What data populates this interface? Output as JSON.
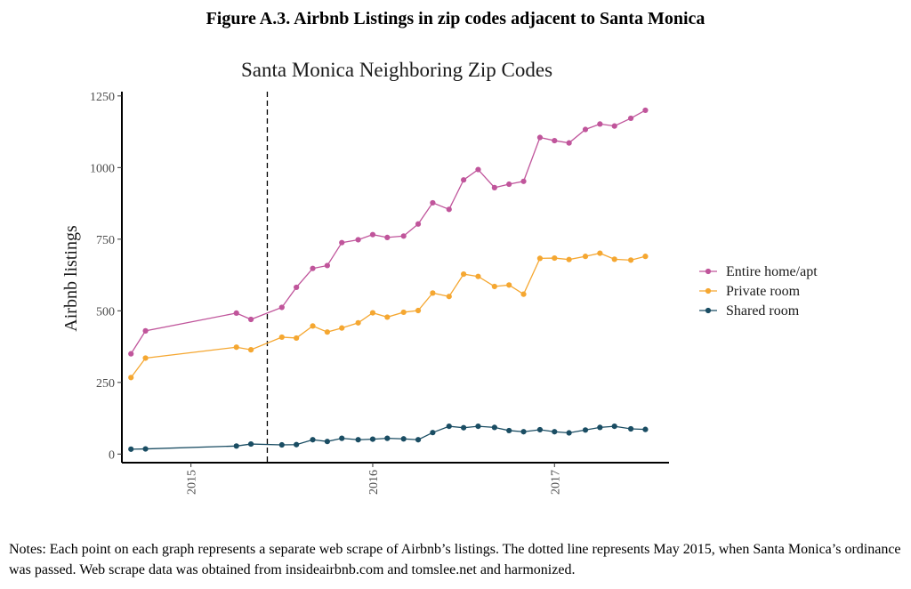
{
  "figure_title": "Figure A.3. Airbnb Listings in zip codes adjacent to Santa Monica",
  "notes": "Notes: Each point on each graph represents a separate web scrape of Airbnb’s listings. The dotted line represents May 2015, when Santa Monica’s ordinance was passed. Web scrape data was obtained from insideairbnb.com and tomslee.net and harmonized.",
  "chart_data": {
    "type": "line",
    "title": "Santa Monica Neighboring Zip Codes",
    "xlabel": "",
    "ylabel": "Airbnb listings",
    "x_ticks": [
      {
        "value": 2015.0,
        "label": "2015"
      },
      {
        "value": 2016.0,
        "label": "2016"
      },
      {
        "value": 2017.0,
        "label": "2017"
      }
    ],
    "y_ticks": [
      0,
      250,
      500,
      750,
      1000,
      1250
    ],
    "xlim": [
      2014.62,
      2017.63
    ],
    "ylim": [
      -30,
      1265
    ],
    "grid": false,
    "legend_position": "right",
    "vline": {
      "x": 2015.42,
      "style": "dashed"
    },
    "x": [
      2014.67,
      2014.75,
      2015.25,
      2015.33,
      2015.5,
      2015.58,
      2015.67,
      2015.75,
      2015.83,
      2015.92,
      2016.0,
      2016.08,
      2016.17,
      2016.25,
      2016.33,
      2016.42,
      2016.5,
      2016.58,
      2016.67,
      2016.75,
      2016.83,
      2016.92,
      2017.0,
      2017.08,
      2017.17,
      2017.25,
      2017.33,
      2017.42,
      2017.5
    ],
    "series": [
      {
        "name": "Entire home/apt",
        "color": "#c0559b",
        "values": [
          350,
          430,
          492,
          470,
          512,
          582,
          648,
          658,
          738,
          748,
          766,
          756,
          761,
          803,
          877,
          854,
          957,
          993,
          930,
          942,
          952,
          1105,
          1094,
          1086,
          1133,
          1152,
          1145,
          1172,
          1200
        ]
      },
      {
        "name": "Private room",
        "color": "#f5a731",
        "values": [
          267,
          335,
          373,
          364,
          408,
          405,
          447,
          426,
          440,
          458,
          493,
          478,
          495,
          501,
          562,
          550,
          628,
          620,
          585,
          590,
          558,
          683,
          684,
          679,
          690,
          701,
          680,
          677,
          690
        ]
      },
      {
        "name": "Shared room",
        "color": "#1a4d63",
        "values": [
          17,
          18,
          28,
          35,
          32,
          33,
          50,
          44,
          55,
          50,
          52,
          55,
          53,
          50,
          75,
          97,
          92,
          97,
          93,
          82,
          78,
          85,
          78,
          74,
          84,
          93,
          97,
          88,
          86
        ]
      }
    ]
  }
}
